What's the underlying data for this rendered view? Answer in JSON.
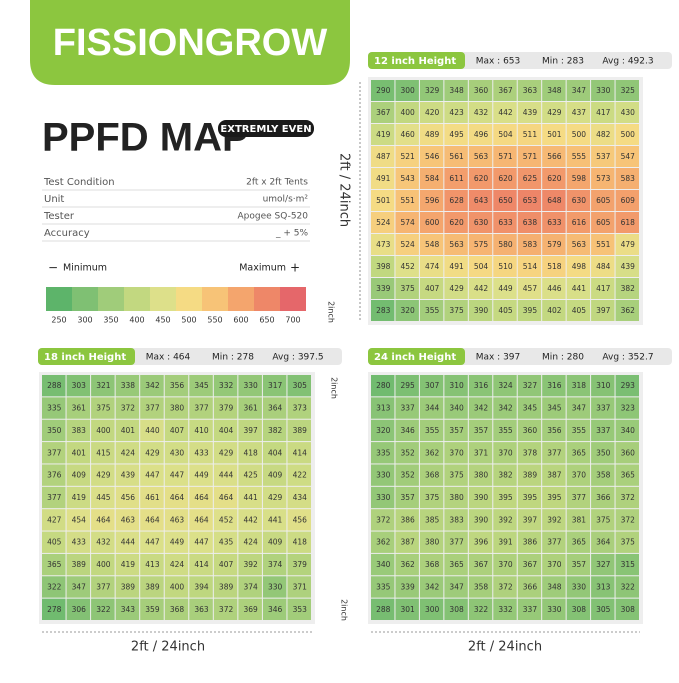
{
  "header": {
    "brand": "FISSIONGROW",
    "title": "PPFD MAP",
    "badge": "EXTREMLY EVEN"
  },
  "specs": [
    [
      "Test Condition",
      "2ft x 2ft Tents"
    ],
    [
      "Unit",
      "umol/s·m²"
    ],
    [
      "Tester",
      "Apogee SQ-520"
    ],
    [
      "Accuracy",
      "_ + 5%"
    ]
  ],
  "legend": {
    "min_label": "Minimum",
    "max_label": "Maximum",
    "ticks": [
      250,
      300,
      350,
      400,
      450,
      500,
      550,
      600,
      650,
      700
    ],
    "colors": [
      "#5db46a",
      "#7fc073",
      "#a0cc7a",
      "#c2d880",
      "#dde08a",
      "#f5db84",
      "#f7c377",
      "#f4a56d",
      "#ee8768",
      "#e5676a"
    ]
  },
  "dimensions": {
    "side": "2ft / 24inch",
    "edge": "2inch"
  },
  "maps": [
    {
      "title": "12 inch Height",
      "max": "Max : 653",
      "min": "Min : 283",
      "avg": "Avg : 492.3",
      "values": [
        [
          290,
          300,
          329,
          348,
          360,
          367,
          363,
          348,
          347,
          330,
          325
        ],
        [
          367,
          400,
          420,
          423,
          432,
          442,
          439,
          429,
          437,
          417,
          430
        ],
        [
          419,
          460,
          489,
          495,
          496,
          504,
          511,
          501,
          500,
          482,
          500
        ],
        [
          487,
          521,
          546,
          561,
          563,
          571,
          571,
          566,
          555,
          537,
          547
        ],
        [
          491,
          543,
          584,
          611,
          620,
          620,
          625,
          620,
          598,
          573,
          583
        ],
        [
          501,
          551,
          596,
          628,
          643,
          650,
          653,
          648,
          630,
          605,
          609
        ],
        [
          524,
          574,
          600,
          620,
          630,
          633,
          638,
          633,
          616,
          605,
          618
        ],
        [
          473,
          524,
          548,
          563,
          575,
          580,
          583,
          579,
          563,
          551,
          479
        ],
        [
          398,
          452,
          474,
          491,
          504,
          510,
          514,
          518,
          498,
          484,
          439
        ],
        [
          339,
          375,
          407,
          429,
          442,
          449,
          457,
          446,
          441,
          417,
          382
        ],
        [
          283,
          320,
          355,
          375,
          390,
          405,
          395,
          402,
          405,
          397,
          362
        ]
      ]
    },
    {
      "title": "18 inch Height",
      "max": "Max : 464",
      "min": "Min : 278",
      "avg": "Avg : 397.5",
      "values": [
        [
          288,
          303,
          321,
          338,
          342,
          356,
          345,
          332,
          330,
          317,
          305
        ],
        [
          335,
          361,
          375,
          372,
          377,
          380,
          377,
          379,
          361,
          364,
          373
        ],
        [
          350,
          383,
          400,
          401,
          440,
          407,
          410,
          404,
          397,
          382,
          389
        ],
        [
          377,
          401,
          415,
          424,
          429,
          430,
          433,
          429,
          418,
          404,
          414
        ],
        [
          376,
          409,
          429,
          439,
          447,
          447,
          449,
          444,
          425,
          409,
          422
        ],
        [
          377,
          419,
          445,
          456,
          461,
          464,
          464,
          464,
          441,
          429,
          434
        ],
        [
          427,
          454,
          464,
          463,
          464,
          463,
          464,
          452,
          442,
          441,
          456
        ],
        [
          405,
          433,
          432,
          444,
          447,
          449,
          447,
          435,
          424,
          409,
          418
        ],
        [
          365,
          389,
          400,
          419,
          413,
          424,
          414,
          407,
          392,
          374,
          379
        ],
        [
          322,
          347,
          377,
          389,
          389,
          400,
          394,
          389,
          374,
          330,
          371
        ],
        [
          278,
          306,
          322,
          343,
          359,
          368,
          363,
          372,
          369,
          346,
          353
        ]
      ]
    },
    {
      "title": "24 inch Height",
      "max": "Max : 397",
      "min": "Min : 280",
      "avg": "Avg : 352.7",
      "values": [
        [
          280,
          295,
          307,
          310,
          316,
          324,
          327,
          316,
          318,
          310,
          293
        ],
        [
          313,
          337,
          344,
          340,
          342,
          342,
          345,
          345,
          347,
          337,
          323
        ],
        [
          320,
          346,
          355,
          357,
          357,
          355,
          360,
          356,
          355,
          337,
          340
        ],
        [
          335,
          352,
          362,
          370,
          371,
          370,
          378,
          377,
          365,
          350,
          360
        ],
        [
          330,
          352,
          368,
          375,
          380,
          382,
          389,
          387,
          370,
          358,
          365
        ],
        [
          330,
          357,
          375,
          380,
          390,
          395,
          395,
          395,
          377,
          366,
          372
        ],
        [
          372,
          386,
          385,
          383,
          390,
          392,
          397,
          392,
          381,
          375,
          372
        ],
        [
          362,
          387,
          380,
          377,
          396,
          391,
          386,
          377,
          365,
          364,
          375
        ],
        [
          340,
          362,
          368,
          365,
          367,
          370,
          367,
          370,
          357,
          327,
          315
        ],
        [
          335,
          339,
          342,
          347,
          358,
          372,
          366,
          348,
          330,
          313,
          322
        ],
        [
          288,
          301,
          300,
          308,
          322,
          332,
          337,
          330,
          308,
          305,
          308
        ]
      ]
    }
  ]
}
